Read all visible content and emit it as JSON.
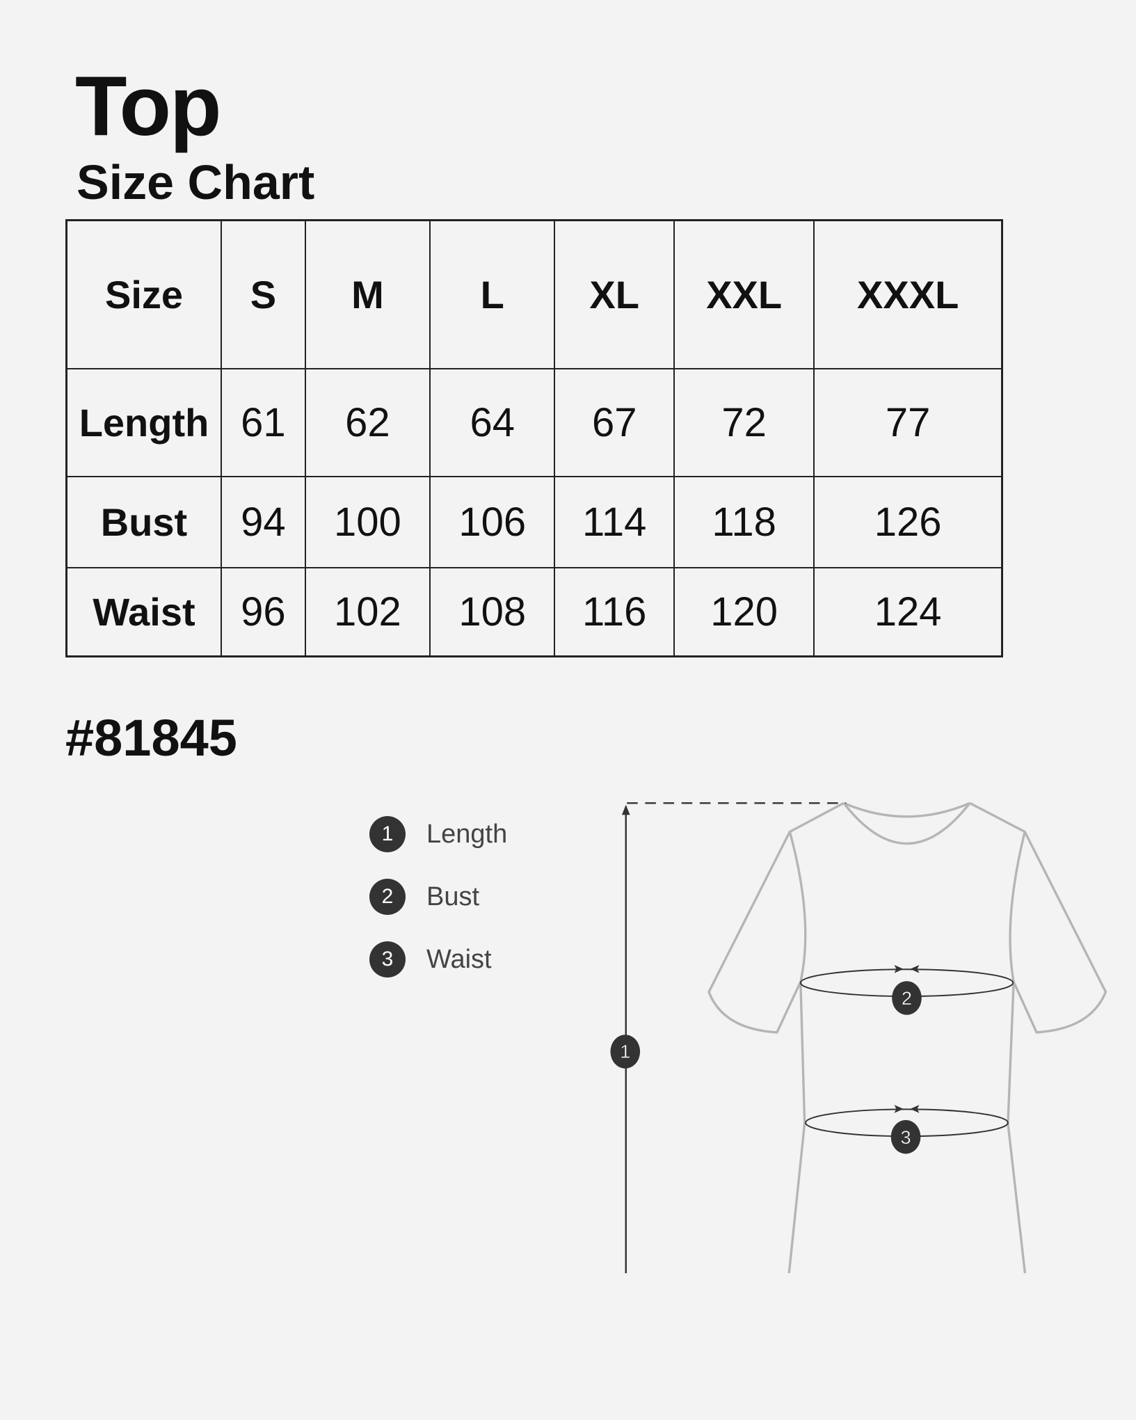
{
  "title": "Top",
  "subtitle": "Size Chart",
  "table": {
    "header": [
      "Size",
      "S",
      "M",
      "L",
      "XL",
      "XXL",
      "XXXL"
    ],
    "rows": [
      {
        "label": "Length",
        "values": [
          "61",
          "62",
          "64",
          "67",
          "72",
          "77"
        ]
      },
      {
        "label": "Bust",
        "values": [
          "94",
          "100",
          "106",
          "114",
          "118",
          "126"
        ]
      },
      {
        "label": "Waist",
        "values": [
          "96",
          "102",
          "108",
          "116",
          "120",
          "124"
        ]
      }
    ]
  },
  "style_number": "#81845",
  "legend": [
    {
      "number": "1",
      "label": "Length"
    },
    {
      "number": "2",
      "label": "Bust"
    },
    {
      "number": "3",
      "label": "Waist"
    }
  ],
  "diagram": {
    "markers": [
      "1",
      "2",
      "3"
    ]
  },
  "colors": {
    "background": "#f3f3f3",
    "marker": "#333333",
    "outline": "#b5b5b5"
  }
}
